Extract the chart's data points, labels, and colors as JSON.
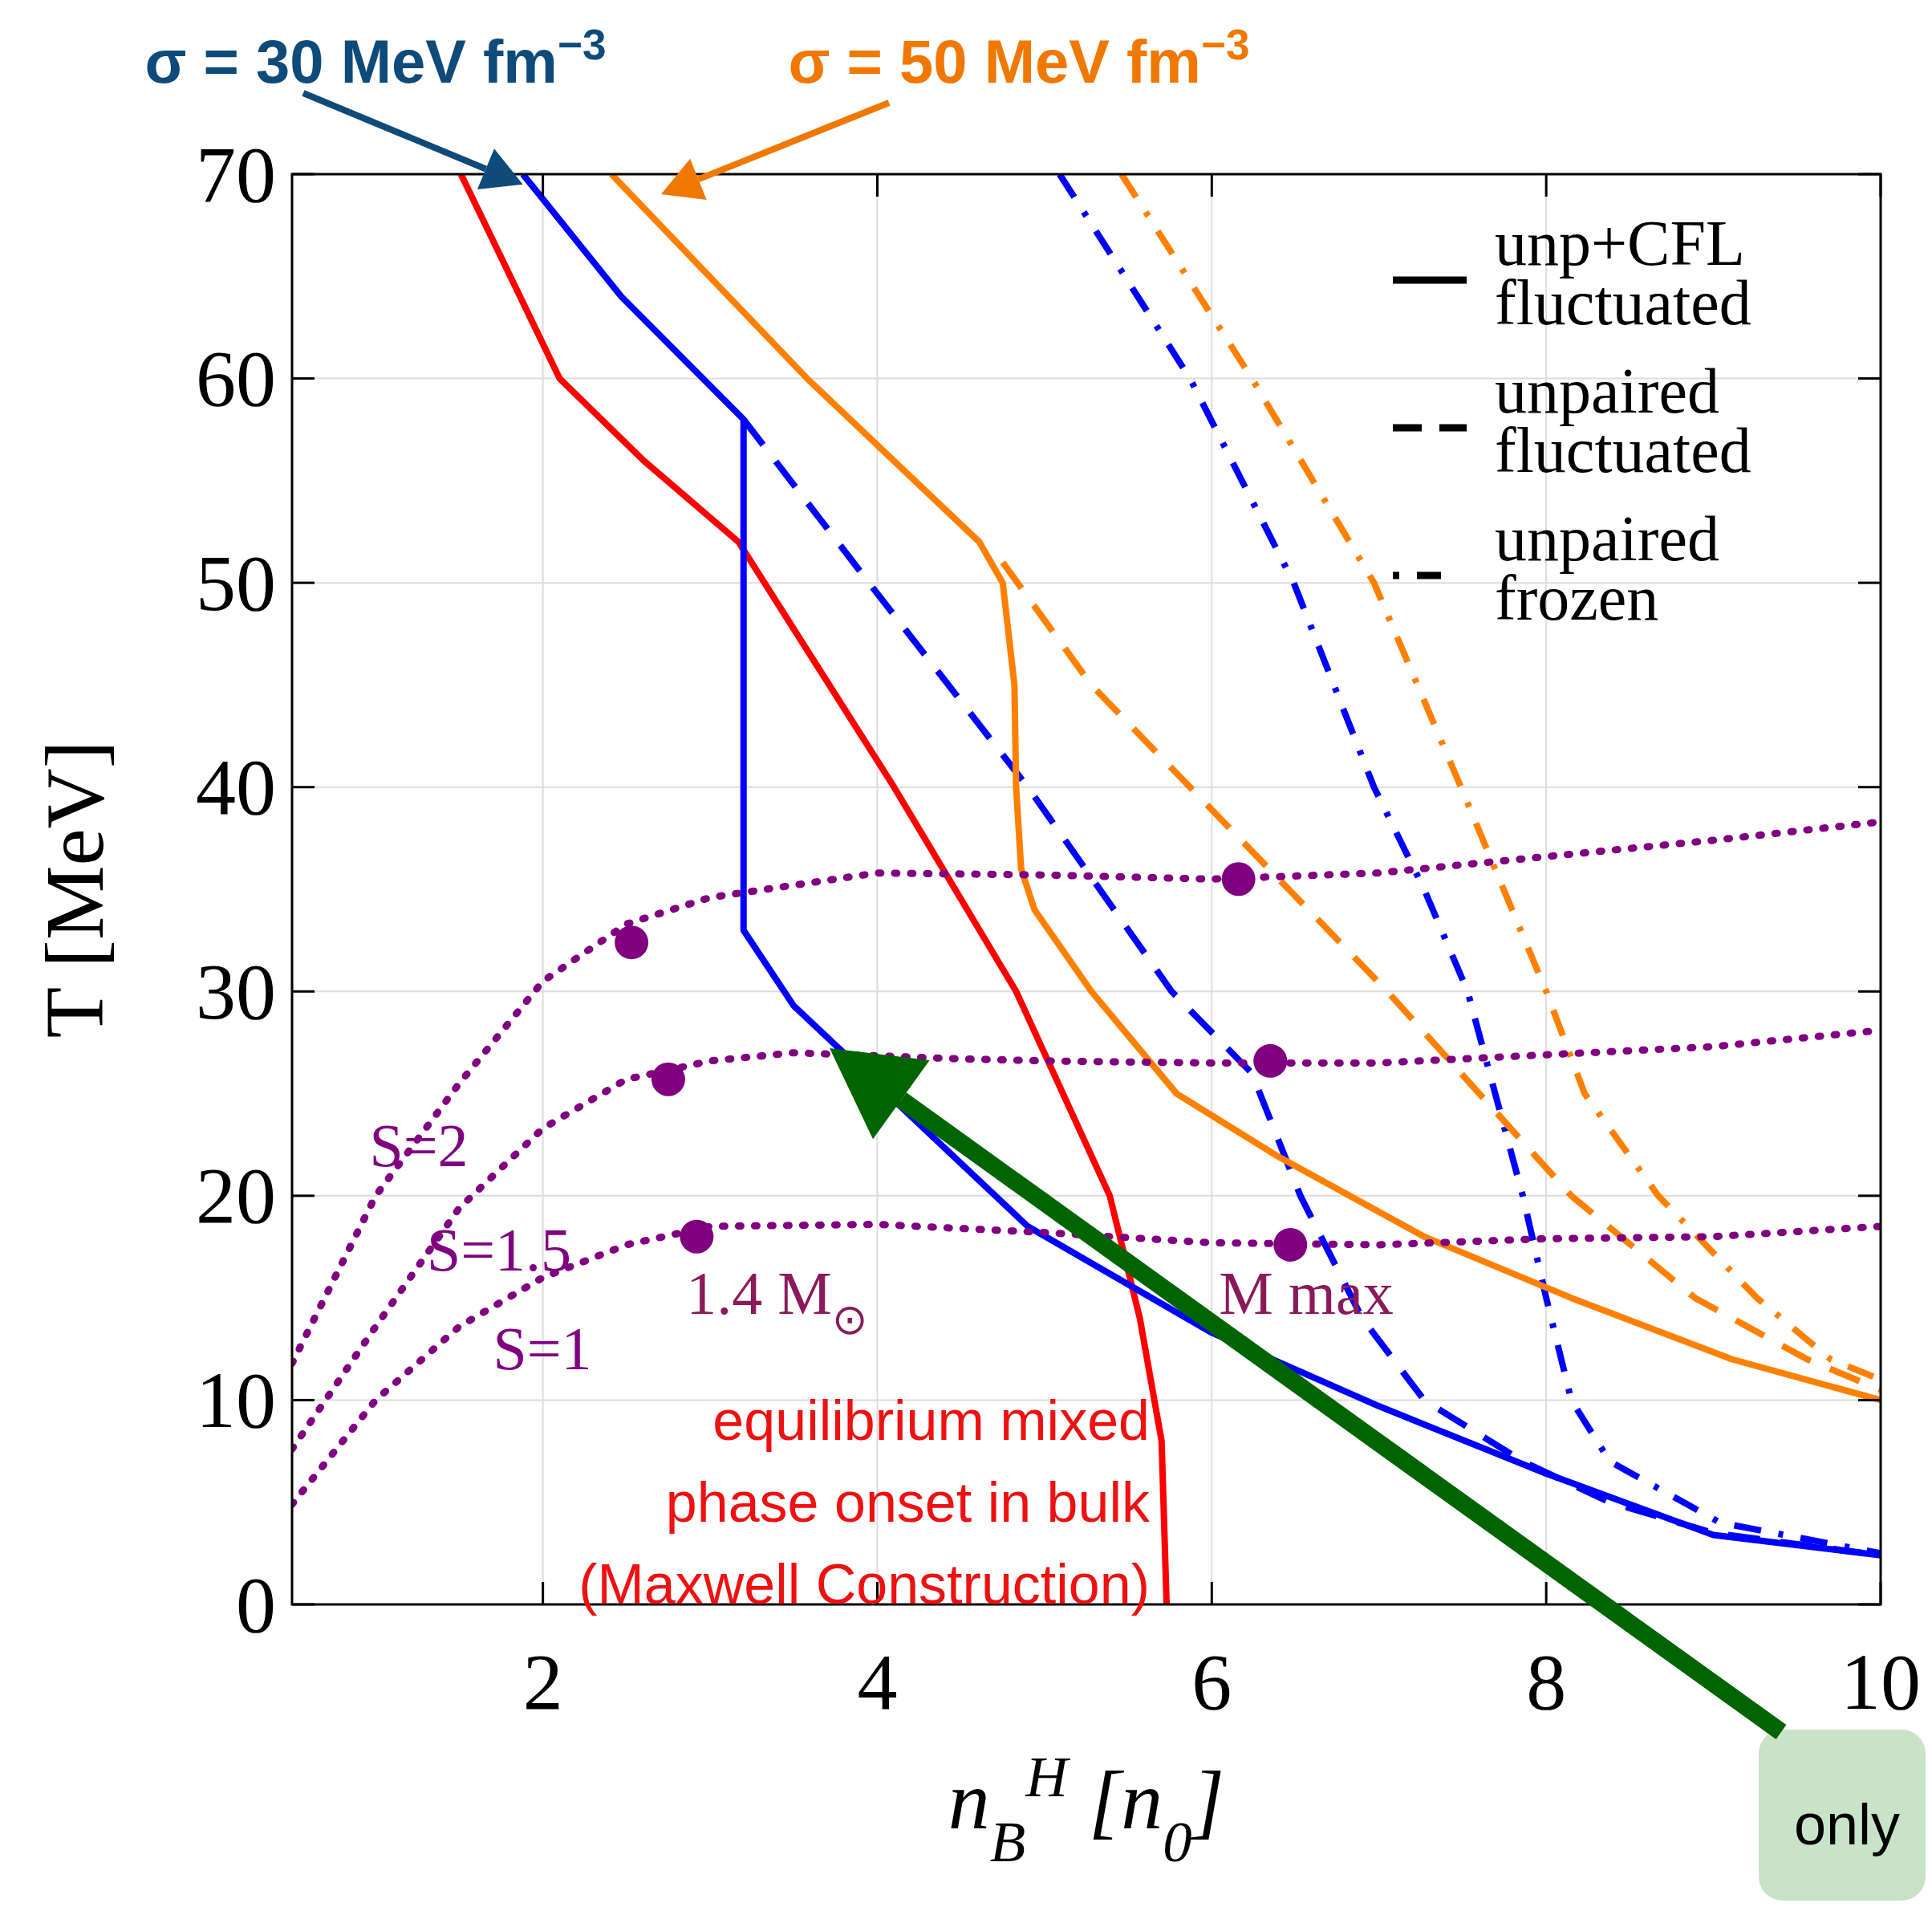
{
  "chart_data": {
    "type": "line",
    "xlabel": "n$_{B}$$^{H}$ [n$_{0}$]",
    "ylabel": "T [MeV]",
    "xlim": [
      0.5,
      10
    ],
    "ylim": [
      0,
      70
    ],
    "xticks": [
      2,
      4,
      6,
      8,
      10
    ],
    "yticks": [
      0,
      10,
      20,
      30,
      40,
      50,
      60,
      70
    ],
    "grid": true,
    "series": [
      {
        "color": "#ff0000",
        "line_style": "solid",
        "x": [
          1.51,
          2.1,
          2.6,
          3.17,
          4.1,
          4.83,
          5.39,
          5.57,
          5.7,
          5.73
        ],
        "values": [
          70,
          60,
          56,
          52,
          40,
          30,
          20,
          14,
          8,
          0
        ]
      },
      {
        "color": "#0000ff",
        "line_style": "solid",
        "x": [
          1.88,
          2.47,
          3.2,
          3.2,
          3.5,
          4.9,
          6.0,
          7.0,
          8.0,
          9.0,
          10
        ],
        "values": [
          70,
          64,
          58,
          33,
          29.3,
          18.5,
          13.3,
          9.7,
          6.4,
          3.4,
          2.4
        ]
      },
      {
        "color": "#0000ff",
        "line_style": "dashed",
        "x": [
          3.2,
          3.95,
          4.9,
          5.76,
          6.24,
          6.53,
          6.9,
          7.27,
          7.86,
          8.38,
          9.0,
          10
        ],
        "values": [
          58,
          50,
          40,
          30,
          26,
          20,
          14,
          10,
          7,
          5,
          3.5,
          2.4
        ]
      },
      {
        "color": "#0000ff",
        "line_style": "dashdot",
        "x": [
          5.09,
          5.87,
          6.49,
          6.97,
          7.27,
          7.53,
          7.86,
          8.0,
          8.15,
          8.38,
          9.04,
          10
        ],
        "values": [
          70,
          60,
          50,
          40,
          35,
          30,
          20,
          15,
          10,
          7,
          4,
          2.5
        ]
      },
      {
        "color": "#ff8000",
        "line_style": "solid",
        "x": [
          2.41,
          3.58,
          4.61,
          4.75,
          4.82,
          4.83,
          4.86,
          4.94,
          5.28,
          5.79,
          6.38,
          7.27,
          8.15,
          9.11,
          10
        ],
        "values": [
          70,
          60,
          52,
          50,
          45,
          40,
          36,
          34,
          30,
          25,
          22,
          18,
          15,
          12,
          10
        ]
      },
      {
        "color": "#ff8000",
        "line_style": "dashed",
        "x": [
          4.75,
          5.28,
          5.87,
          6.46,
          7.05,
          7.6,
          8.15,
          8.89,
          9.56,
          10
        ],
        "values": [
          51,
          45,
          40,
          35,
          30,
          25,
          20,
          15,
          12,
          10.5
        ]
      },
      {
        "color": "#ff8000",
        "line_style": "dashdot",
        "x": [
          5.46,
          6.24,
          6.97,
          7.49,
          8.0,
          8.23,
          8.67,
          9.26,
          9.7,
          10
        ],
        "values": [
          70,
          60,
          50,
          40,
          30,
          25,
          20,
          15,
          12,
          11
        ]
      },
      {
        "color": "#800080",
        "line_style": "dotted",
        "x": [
          0.5,
          1,
          1.5,
          2,
          2.5,
          3,
          4,
          5,
          6,
          7,
          8,
          9,
          10
        ],
        "values": [
          11.8,
          20,
          25.5,
          30.5,
          33.3,
          34.6,
          35.8,
          35.7,
          35.5,
          35.8,
          36.6,
          37.4,
          38.3
        ]
      },
      {
        "color": "#800080",
        "line_style": "dotted",
        "x": [
          0.5,
          1,
          1.5,
          2,
          2.5,
          3,
          3.5,
          4.5,
          5,
          6,
          7,
          8,
          9,
          10
        ],
        "values": [
          7.6,
          13.6,
          19.4,
          23.3,
          25.7,
          26.6,
          27.0,
          26.7,
          26.6,
          26.5,
          26.5,
          26.9,
          27.3,
          28.1
        ]
      },
      {
        "color": "#800080",
        "line_style": "dotted",
        "x": [
          0.5,
          1,
          1.5,
          2,
          2.5,
          3,
          4,
          5,
          6,
          7,
          8,
          9,
          10
        ],
        "values": [
          4.9,
          10,
          13.6,
          16,
          17.6,
          18.5,
          18.6,
          18.2,
          17.7,
          17.6,
          17.9,
          18.0,
          18.5
        ]
      },
      {
        "type": "scatter",
        "color": "#800080",
        "marker": "circle",
        "x": [
          2.53,
          2.75,
          2.92,
          6.16,
          6.35,
          6.47
        ],
        "values": [
          32.4,
          25.7,
          18.0,
          35.5,
          26.6,
          17.6
        ]
      }
    ],
    "annotations": [
      {
        "text": "σ = 30 MeV fm$^{−3}$",
        "x": 1.88,
        "y": 69.5
      },
      "σ = 50 MeV fm$^{−3}$",
      "S=2",
      "S=1.5",
      "S=1",
      "1.4 M$_{⊙}$",
      "M max",
      "equilibrium mixed\nphase onset in bulk\n(Maxwell Construction)",
      "only",
      "unp+CFL\nfluctuated",
      "unpaired\nfluctuated",
      "unpaired\nfrozen"
    ]
  }
}
